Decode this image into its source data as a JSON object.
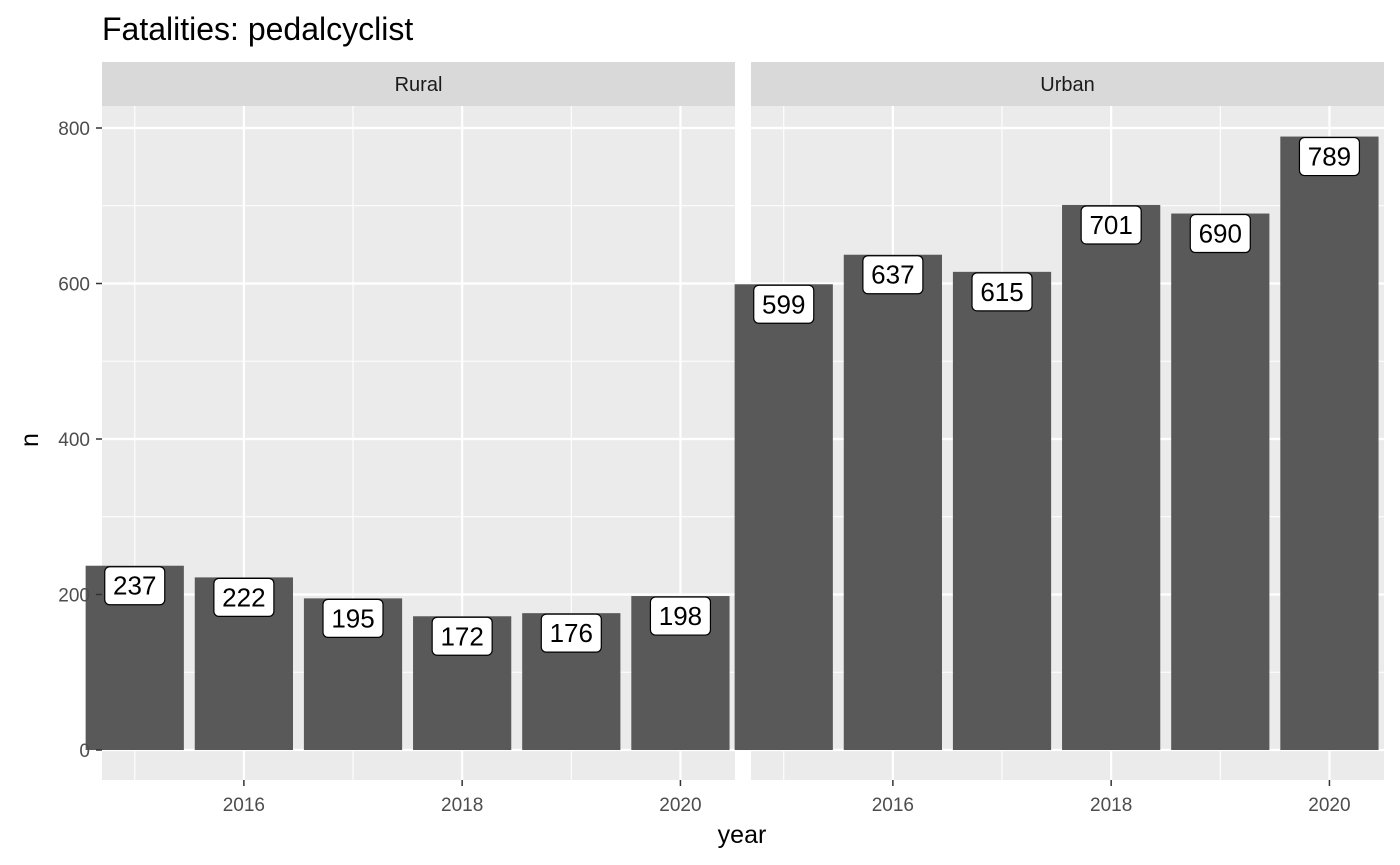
{
  "chart_data": {
    "type": "bar",
    "title": "Fatalities: pedalcyclist",
    "xlabel": "year",
    "ylabel": "n",
    "ylim": [
      0,
      800
    ],
    "yticks": [
      0,
      200,
      400,
      600,
      800
    ],
    "xticks": [
      2016,
      2018,
      2020
    ],
    "grid": true,
    "colors": {
      "bar": "#595959",
      "panel": "#ebebeb",
      "strip": "#d9d9d9",
      "grid": "#ffffff"
    },
    "panels": [
      {
        "name": "Rural",
        "x": [
          2015,
          2016,
          2017,
          2018,
          2019,
          2020
        ],
        "values": [
          237,
          222,
          195,
          172,
          176,
          198
        ]
      },
      {
        "name": "Urban",
        "x": [
          2015,
          2016,
          2017,
          2018,
          2019,
          2020
        ],
        "values": [
          599,
          637,
          615,
          701,
          690,
          789
        ]
      }
    ]
  }
}
